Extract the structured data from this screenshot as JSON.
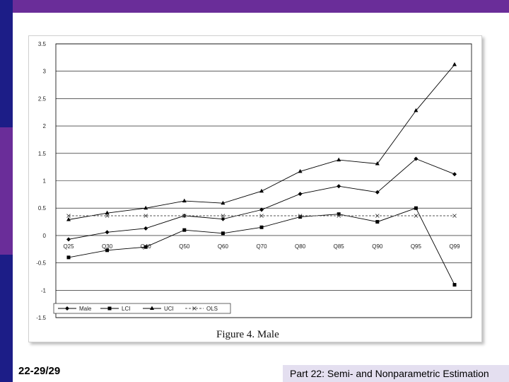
{
  "slide": {
    "number": "22-29/29",
    "footer": "Part 22: Semi- and Nonparametric Estimation",
    "colors": {
      "top_bar": "#6a2d99",
      "left_bar_top": "#1c1d87",
      "left_bar_mid": "#6a2d99",
      "left_bar_bot": "#1c1d87",
      "footer_box": "#e4dff0"
    }
  },
  "chart_data": {
    "type": "line",
    "title": "Figure 4.  Male",
    "xlabel": "",
    "ylabel": "",
    "categories": [
      "Q25",
      "Q30",
      "Q40",
      "Q50",
      "Q60",
      "Q70",
      "Q80",
      "Q85",
      "Q90",
      "Q95",
      "Q99"
    ],
    "ylim": [
      -1.5,
      3.5
    ],
    "yticks": [
      3.5,
      3,
      2.5,
      2,
      1.5,
      1,
      0.5,
      0,
      -0.5,
      -1,
      -1.5
    ],
    "ytick_labels": [
      "3.5",
      "3",
      "2.5",
      "2",
      "1.5",
      "1",
      "0.5",
      "0",
      "-0.5",
      "-1",
      "-1.5"
    ],
    "grid": true,
    "legend_position": "bottom-left",
    "series": [
      {
        "name": "Male",
        "marker": "diamond",
        "dash": "solid",
        "values": [
          -0.07,
          0.06,
          0.13,
          0.36,
          0.3,
          0.47,
          0.76,
          0.9,
          0.79,
          1.4,
          1.12
        ]
      },
      {
        "name": "LCI",
        "marker": "square",
        "dash": "solid",
        "values": [
          -0.4,
          -0.27,
          -0.21,
          0.1,
          0.04,
          0.15,
          0.34,
          0.39,
          0.25,
          0.5,
          -0.9
        ]
      },
      {
        "name": "UCI",
        "marker": "triangle",
        "dash": "solid",
        "values": [
          0.29,
          0.41,
          0.5,
          0.63,
          0.59,
          0.81,
          1.17,
          1.38,
          1.31,
          2.28,
          3.12
        ]
      },
      {
        "name": "OLS",
        "marker": "x",
        "dash": "dashed",
        "values": [
          0.36,
          0.36,
          0.36,
          0.36,
          0.36,
          0.36,
          0.36,
          0.36,
          0.36,
          0.36,
          0.36
        ]
      }
    ]
  }
}
